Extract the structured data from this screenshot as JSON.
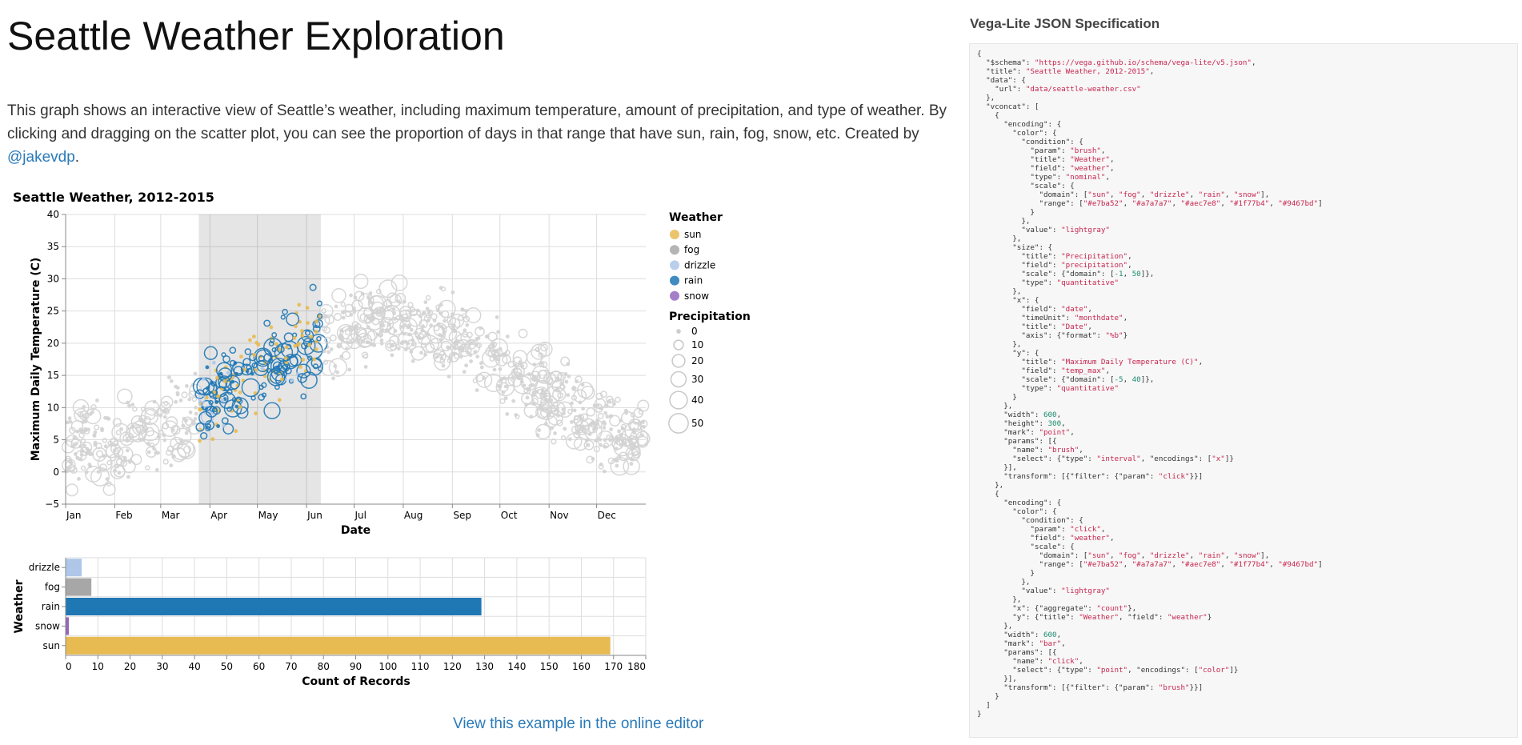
{
  "page": {
    "title": "Seattle Weather Exploration",
    "description": "This graph shows an interactive view of Seattle’s weather, including maximum temperature, amount of precipitation, and type of weather. By clicking and dragging on the scatter plot, you can see the proportion of days in that range that have sun, rain, fog, snow, etc. Created by ",
    "author_link": "@jakevdp",
    "description_end": ".",
    "editor_link": "View this example in the online editor",
    "spec_heading": "Vega-Lite JSON Specification"
  },
  "chart_data": [
    {
      "type": "scatter",
      "title": "Seattle Weather, 2012-2015",
      "xlabel": "Date",
      "ylabel": "Maximum Daily Temperature (C)",
      "x_ticks": [
        "Jan",
        "Feb",
        "Mar",
        "Apr",
        "May",
        "Jun",
        "Jul",
        "Aug",
        "Sep",
        "Oct",
        "Nov",
        "Dec"
      ],
      "ylim": [
        -5,
        40
      ],
      "y_ticks": [
        -5,
        0,
        5,
        10,
        15,
        20,
        25,
        30,
        35,
        40
      ],
      "grid": true,
      "brush_day_range": [
        84,
        161
      ],
      "legend_position": "right",
      "color_legend": {
        "title": "Weather",
        "items": [
          {
            "label": "sun",
            "color": "#e7ba52"
          },
          {
            "label": "fog",
            "color": "#a7a7a7"
          },
          {
            "label": "drizzle",
            "color": "#aec7e8"
          },
          {
            "label": "rain",
            "color": "#1f77b4"
          },
          {
            "label": "snow",
            "color": "#9467bd"
          }
        ]
      },
      "size_legend": {
        "title": "Precipitation",
        "values": [
          0,
          10,
          20,
          30,
          40,
          50
        ]
      },
      "inactive_color": "lightgray",
      "note": "~1461 daily points (2012-2015), plotted by month-day; points inside the brush are colored by weather, points outside are gray"
    },
    {
      "type": "bar",
      "orientation": "horizontal",
      "categories": [
        "drizzle",
        "fog",
        "rain",
        "snow",
        "sun"
      ],
      "values": [
        5,
        8,
        129,
        1,
        169
      ],
      "colors": [
        "#aec7e8",
        "#a7a7a7",
        "#1f77b4",
        "#9467bd",
        "#e7ba52"
      ],
      "xlabel": "Count of Records",
      "ylabel": "Weather",
      "xlim": [
        0,
        180
      ],
      "x_ticks": [
        0,
        10,
        20,
        30,
        40,
        50,
        60,
        70,
        80,
        90,
        100,
        110,
        120,
        130,
        140,
        150,
        160,
        170,
        180
      ]
    }
  ],
  "spec_text": "{\n  \"$schema\": \"https://vega.github.io/schema/vega-lite/v5.json\",\n  \"title\": \"Seattle Weather, 2012-2015\",\n  \"data\": {\n    \"url\": \"data/seattle-weather.csv\"\n  },\n  \"vconcat\": [\n    {\n      \"encoding\": {\n        \"color\": {\n          \"condition\": {\n            \"param\": \"brush\",\n            \"title\": \"Weather\",\n            \"field\": \"weather\",\n            \"type\": \"nominal\",\n            \"scale\": {\n              \"domain\": [\"sun\", \"fog\", \"drizzle\", \"rain\", \"snow\"],\n              \"range\": [\"#e7ba52\", \"#a7a7a7\", \"#aec7e8\", \"#1f77b4\", \"#9467bd\"]\n            }\n          },\n          \"value\": \"lightgray\"\n        },\n        \"size\": {\n          \"title\": \"Precipitation\",\n          \"field\": \"precipitation\",\n          \"scale\": {\"domain\": [-1, 50]},\n          \"type\": \"quantitative\"\n        },\n        \"x\": {\n          \"field\": \"date\",\n          \"timeUnit\": \"monthdate\",\n          \"title\": \"Date\",\n          \"axis\": {\"format\": \"%b\"}\n        },\n        \"y\": {\n          \"title\": \"Maximum Daily Temperature (C)\",\n          \"field\": \"temp_max\",\n          \"scale\": {\"domain\": [-5, 40]},\n          \"type\": \"quantitative\"\n        }\n      },\n      \"width\": 600,\n      \"height\": 300,\n      \"mark\": \"point\",\n      \"params\": [{\n        \"name\": \"brush\",\n        \"select\": {\"type\": \"interval\", \"encodings\": [\"x\"]}\n      }],\n      \"transform\": [{\"filter\": {\"param\": \"click\"}}]\n    },\n    {\n      \"encoding\": {\n        \"color\": {\n          \"condition\": {\n            \"param\": \"click\",\n            \"field\": \"weather\",\n            \"scale\": {\n              \"domain\": [\"sun\", \"fog\", \"drizzle\", \"rain\", \"snow\"],\n              \"range\": [\"#e7ba52\", \"#a7a7a7\", \"#aec7e8\", \"#1f77b4\", \"#9467bd\"]\n            }\n          },\n          \"value\": \"lightgray\"\n        },\n        \"x\": {\"aggregate\": \"count\"},\n        \"y\": {\"title\": \"Weather\", \"field\": \"weather\"}\n      },\n      \"width\": 600,\n      \"mark\": \"bar\",\n      \"params\": [{\n        \"name\": \"click\",\n        \"select\": {\"type\": \"point\", \"encodings\": [\"color\"]}\n      }],\n      \"transform\": [{\"filter\": {\"param\": \"brush\"}}]\n    }\n  ]\n}"
}
